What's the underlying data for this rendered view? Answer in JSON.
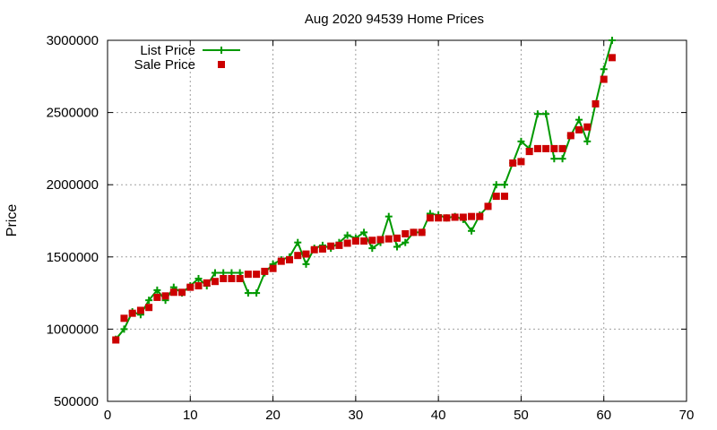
{
  "chart_data": {
    "type": "line",
    "title": "Aug 2020 94539 Home Prices",
    "xlabel": "",
    "ylabel": "Price",
    "xlim": [
      0,
      70
    ],
    "ylim": [
      500000,
      3000000
    ],
    "xticks": [
      0,
      10,
      20,
      30,
      40,
      50,
      60,
      70
    ],
    "yticks": [
      500000,
      1000000,
      1500000,
      2000000,
      2500000,
      3000000
    ],
    "grid": true,
    "legend_position": "top-left",
    "series": [
      {
        "name": "List Price",
        "style": "line-with-plus-markers",
        "color": "#009900",
        "x": [
          1,
          2,
          3,
          4,
          5,
          6,
          7,
          8,
          9,
          10,
          11,
          12,
          13,
          14,
          15,
          16,
          17,
          18,
          19,
          20,
          21,
          22,
          23,
          24,
          25,
          26,
          27,
          28,
          29,
          30,
          31,
          32,
          33,
          34,
          35,
          36,
          37,
          38,
          39,
          40,
          41,
          42,
          43,
          44,
          45,
          46,
          47,
          48,
          49,
          50,
          51,
          52,
          53,
          54,
          55,
          56,
          57,
          58,
          59,
          60,
          61
        ],
        "values": [
          930000,
          1000000,
          1120000,
          1100000,
          1200000,
          1270000,
          1200000,
          1290000,
          1250000,
          1300000,
          1350000,
          1300000,
          1390000,
          1390000,
          1390000,
          1390000,
          1250000,
          1250000,
          1390000,
          1450000,
          1480000,
          1500000,
          1600000,
          1450000,
          1560000,
          1580000,
          1560000,
          1600000,
          1650000,
          1630000,
          1670000,
          1560000,
          1600000,
          1780000,
          1570000,
          1600000,
          1670000,
          1670000,
          1800000,
          1790000,
          1770000,
          1780000,
          1760000,
          1680000,
          1790000,
          1850000,
          2000000,
          2000000,
          2150000,
          2300000,
          2250000,
          2490000,
          2490000,
          2180000,
          2180000,
          2340000,
          2450000,
          2300000,
          2560000,
          2800000,
          3000000
        ]
      },
      {
        "name": "Sale Price",
        "style": "square-markers",
        "color": "#cc0000",
        "x": [
          1,
          2,
          3,
          4,
          5,
          6,
          7,
          8,
          9,
          10,
          11,
          12,
          13,
          14,
          15,
          16,
          17,
          18,
          19,
          20,
          21,
          22,
          23,
          24,
          25,
          26,
          27,
          28,
          29,
          30,
          31,
          32,
          33,
          34,
          35,
          36,
          37,
          38,
          39,
          40,
          41,
          42,
          43,
          44,
          45,
          46,
          47,
          48,
          49,
          50,
          51,
          52,
          53,
          54,
          55,
          56,
          57,
          58,
          59,
          60,
          61
        ],
        "values": [
          925000,
          1075000,
          1110000,
          1130000,
          1150000,
          1220000,
          1230000,
          1255000,
          1255000,
          1290000,
          1300000,
          1320000,
          1330000,
          1350000,
          1350000,
          1350000,
          1380000,
          1380000,
          1400000,
          1420000,
          1470000,
          1480000,
          1510000,
          1520000,
          1550000,
          1555000,
          1575000,
          1580000,
          1595000,
          1610000,
          1610000,
          1615000,
          1620000,
          1625000,
          1630000,
          1660000,
          1670000,
          1670000,
          1770000,
          1770000,
          1770000,
          1775000,
          1775000,
          1780000,
          1780000,
          1850000,
          1920000,
          1920000,
          2150000,
          2160000,
          2230000,
          2250000,
          2250000,
          2250000,
          2250000,
          2340000,
          2380000,
          2400000,
          2560000,
          2730000,
          2880000
        ]
      }
    ]
  }
}
